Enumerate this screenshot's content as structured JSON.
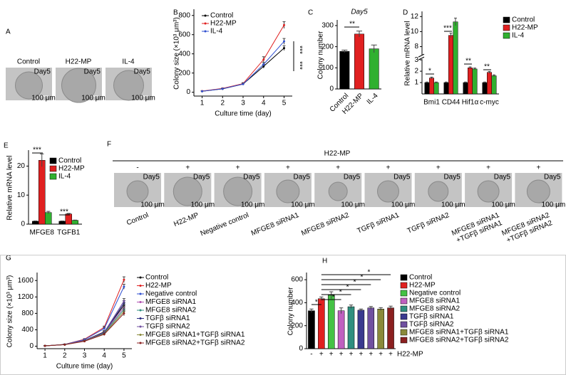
{
  "figure": {
    "panel_a": {
      "letter": "A",
      "labels": [
        "Control",
        "H22-MP",
        "IL-4"
      ],
      "day": "Day5",
      "scale": "100 μm"
    },
    "panel_f": {
      "letter": "F",
      "header": "H22-MP",
      "signs": [
        "-",
        "+",
        "+",
        "+",
        "+",
        "+",
        "+",
        "+",
        "+"
      ],
      "labels": [
        [
          "Control"
        ],
        [
          "H22-MP"
        ],
        [
          "Negative control"
        ],
        [
          "MFGE8 siRNA1"
        ],
        [
          "MFGE8 siRNA2"
        ],
        [
          "TGFβ siRNA1"
        ],
        [
          "TGFβ siRNA2"
        ],
        [
          "MFGE8 siRNA1",
          "+TGFβ siRNA1"
        ],
        [
          "MFGE8 siRNA2",
          "+TGFβ siRNA2"
        ]
      ],
      "day": "Day5",
      "scale": "100 μm"
    }
  },
  "chart_data": [
    {
      "panel": "B",
      "type": "line",
      "x": [
        1,
        2,
        3,
        4,
        5
      ],
      "xlim": [
        0.6,
        5.4
      ],
      "xticks": [
        1,
        2,
        3,
        4,
        5
      ],
      "ylim": [
        -40,
        850
      ],
      "yticks": [
        0,
        200,
        400,
        600,
        800
      ],
      "xlabel": "Culture time (day)",
      "ylabel": "Colony size (×10³ μm³)",
      "legend": "upper left",
      "series": [
        {
          "name": "Control",
          "color": "#000000",
          "values": [
            10,
            35,
            85,
            270,
            460
          ],
          "errors": [
            2,
            4,
            8,
            20,
            25
          ]
        },
        {
          "name": "H22-MP",
          "color": "#e02020",
          "values": [
            12,
            40,
            90,
            340,
            700
          ],
          "errors": [
            2,
            4,
            10,
            30,
            35
          ]
        },
        {
          "name": "IL-4",
          "color": "#3050d0",
          "values": [
            10,
            36,
            85,
            290,
            530
          ],
          "errors": [
            2,
            4,
            8,
            20,
            30
          ]
        }
      ],
      "annotations": [
        "***",
        "***"
      ]
    },
    {
      "panel": "C",
      "type": "bar",
      "title": "Day5",
      "categories": [
        "Control",
        "H22-MP",
        "IL-4"
      ],
      "values": [
        178,
        260,
        190
      ],
      "errors": [
        6,
        14,
        18
      ],
      "colors": [
        "#000000",
        "#e02020",
        "#30b030"
      ],
      "ylim": [
        0,
        320
      ],
      "yticks": [
        0,
        100,
        200,
        300
      ],
      "ylabel": "Colony number",
      "annotations": [
        "**"
      ]
    },
    {
      "panel": "D",
      "type": "bar",
      "categories": [
        "Bmi1",
        "CD44",
        "Hif1α",
        "c-myc"
      ],
      "ylim": [
        0,
        12.5
      ],
      "ybreak": [
        3,
        7
      ],
      "yticks": [
        1,
        2,
        3,
        8,
        10,
        12
      ],
      "ylabel": "Relative mRNA level",
      "legend": "upper right",
      "series": [
        {
          "name": "Control",
          "color": "#000000",
          "values": [
            1,
            1,
            1,
            1
          ],
          "errors": [
            0.05,
            0.05,
            0.05,
            0.05
          ]
        },
        {
          "name": "H22-MP",
          "color": "#e02020",
          "values": [
            1.4,
            9.5,
            2.3,
            1.9
          ],
          "errors": [
            0.08,
            0.3,
            0.08,
            0.08
          ]
        },
        {
          "name": "IL-4",
          "color": "#30b030",
          "values": [
            1.0,
            11.3,
            2.2,
            1.6
          ],
          "errors": [
            0.05,
            0.5,
            0.08,
            0.08
          ]
        }
      ],
      "annotations": [
        "*",
        "***",
        "**",
        "**"
      ]
    },
    {
      "panel": "E",
      "type": "bar",
      "categories": [
        "MFGE8",
        "TGFB1"
      ],
      "ylim": [
        0,
        25
      ],
      "yticks": [
        0,
        10,
        20
      ],
      "ylabel": "Relative mRNA level",
      "legend": "upper right",
      "series": [
        {
          "name": "Control",
          "color": "#000000",
          "values": [
            1,
            1
          ],
          "errors": [
            0.1,
            0.1
          ]
        },
        {
          "name": "H22-MP",
          "color": "#e02020",
          "values": [
            22,
            3.5
          ],
          "errors": [
            2.2,
            0.2
          ]
        },
        {
          "name": "IL-4",
          "color": "#30b030",
          "values": [
            4,
            1.3
          ],
          "errors": [
            0.4,
            0.1
          ]
        }
      ],
      "annotations": [
        "***",
        "***"
      ]
    },
    {
      "panel": "G",
      "type": "line",
      "x": [
        1,
        2,
        3,
        4,
        5
      ],
      "xlim": [
        0.6,
        5.4
      ],
      "xticks": [
        1,
        2,
        3,
        4,
        5
      ],
      "ylim": [
        -60,
        1760
      ],
      "yticks": [
        0,
        400,
        800,
        1200,
        1600
      ],
      "xlabel": "Culture time (day)",
      "ylabel": "Colony size (×10³ μm³)",
      "legend": "right",
      "series": [
        {
          "name": "Control",
          "color": "#000000",
          "values": [
            10,
            40,
            140,
            350,
            1000
          ],
          "errors": [
            2,
            6,
            15,
            30,
            60
          ]
        },
        {
          "name": "H22-MP",
          "color": "#e02020",
          "values": [
            10,
            45,
            170,
            460,
            1620
          ],
          "errors": [
            2,
            6,
            15,
            30,
            70
          ]
        },
        {
          "name": "Negative control",
          "color": "#3050d0",
          "values": [
            10,
            45,
            160,
            430,
            1450
          ],
          "errors": [
            2,
            6,
            15,
            30,
            60
          ]
        },
        {
          "name": "MFGE8 siRNA1",
          "color": "#b050b0",
          "values": [
            10,
            40,
            135,
            330,
            950
          ],
          "errors": [
            2,
            6,
            15,
            30,
            60
          ]
        },
        {
          "name": "MFGE8 siRNA2",
          "color": "#2f8f7f",
          "values": [
            10,
            40,
            130,
            320,
            900
          ],
          "errors": [
            2,
            6,
            15,
            30,
            60
          ]
        },
        {
          "name": "TGFβ siRNA1",
          "color": "#2a2a80",
          "values": [
            10,
            40,
            130,
            330,
            1050
          ],
          "errors": [
            2,
            6,
            15,
            30,
            60
          ]
        },
        {
          "name": "TGFβ siRNA2",
          "color": "#7050a0",
          "values": [
            10,
            40,
            135,
            340,
            1100
          ],
          "errors": [
            2,
            6,
            15,
            30,
            60
          ]
        },
        {
          "name": "MFGE8 siRNA1+TGFβ siRNA1",
          "color": "#8a8a3a",
          "values": [
            10,
            40,
            125,
            300,
            850
          ],
          "errors": [
            2,
            6,
            15,
            30,
            60
          ]
        },
        {
          "name": "MFGE8 siRNA2+TGFβ siRNA2",
          "color": "#8b2020",
          "values": [
            10,
            38,
            120,
            290,
            800
          ],
          "errors": [
            2,
            6,
            15,
            30,
            60
          ]
        }
      ]
    },
    {
      "panel": "H",
      "type": "bar",
      "categories": [
        "Control",
        "H22-MP",
        "Negative control",
        "MFGE8 siRNA1",
        "MFGE8 siRNA2",
        "TGFβ siRNA1",
        "TGFβ siRNA2",
        "MFGE8 siRNA1+TGFβ siRNA1",
        "MFGE8 siRNA2+TGFβ siRNA2"
      ],
      "values": [
        330,
        435,
        465,
        330,
        365,
        335,
        355,
        345,
        355
      ],
      "errors": [
        15,
        15,
        30,
        25,
        15,
        10,
        12,
        12,
        15
      ],
      "colors": [
        "#000000",
        "#e02020",
        "#44c244",
        "#c060c0",
        "#2f8f7f",
        "#3a3a8f",
        "#7050a0",
        "#8a8a3a",
        "#8b2020"
      ],
      "x_signs": [
        "-",
        "+",
        "+",
        "+",
        "+",
        "+",
        "+",
        "+",
        "+"
      ],
      "x_sign_label": "H22-MP",
      "ylim": [
        0,
        650
      ],
      "yticks": [
        0,
        200,
        400,
        600
      ],
      "ylabel": "Colony number",
      "legend": "right",
      "annotations": [
        "*",
        "*",
        "*",
        "*",
        "*",
        "*",
        "*"
      ]
    }
  ]
}
